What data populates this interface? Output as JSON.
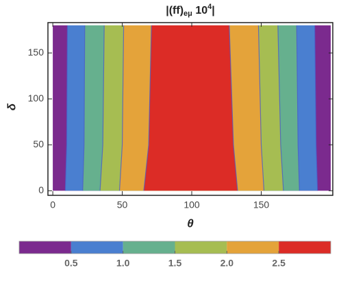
{
  "chart_data": {
    "type": "contour",
    "title": "|(ff)",
    "title_sub": "eμ",
    "title_mid": " 10",
    "title_sup": "4",
    "title_end": "|",
    "x_label": "θ",
    "y_label": "δ",
    "xlim": [
      -3.5,
      201.5
    ],
    "ylim": [
      -5,
      183
    ],
    "xticks": [
      0,
      50,
      100,
      150
    ],
    "yticks": [
      0,
      50,
      100,
      150
    ],
    "domain_x": [
      0,
      200
    ],
    "domain_y": [
      0,
      180
    ],
    "contour_y": [
      0,
      50,
      180
    ],
    "contours": [
      {
        "left": [
          9,
          10,
          10.5
        ],
        "right": [
          190.5,
          189.5,
          188.5
        ]
      },
      {
        "left": [
          21.5,
          22.5,
          23
        ],
        "right": [
          177.5,
          176.5,
          175.5
        ]
      },
      {
        "left": [
          34,
          36,
          37
        ],
        "right": [
          166,
          164,
          162
        ]
      },
      {
        "left": [
          48,
          50,
          51
        ],
        "right": [
          152,
          150,
          148
        ]
      },
      {
        "left": [
          65.5,
          69,
          71
        ],
        "right": [
          133,
          130,
          127
        ]
      }
    ],
    "levels": [
      0.5,
      {
        "value": 1,
        "label": "1.0"
      },
      1.5,
      {
        "value": 2,
        "label": "2.0"
      },
      2.5
    ],
    "clim": [
      0,
      3
    ],
    "colors": [
      "#7b2a8e",
      "#4a7fd0",
      "#66b08e",
      "#a6bd52",
      "#e4a33a",
      "#dc2c26"
    ],
    "line_color": "#4b5cc8"
  }
}
